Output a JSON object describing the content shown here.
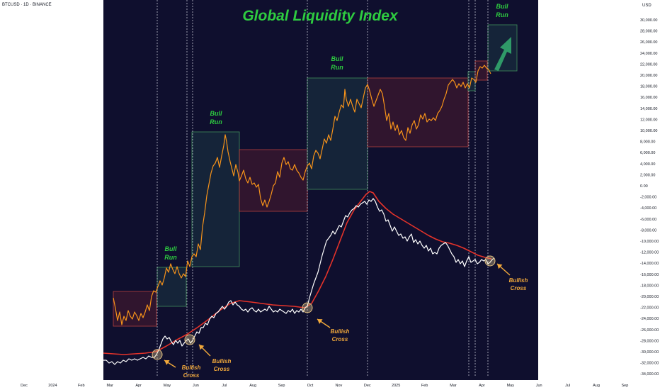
{
  "header": {
    "symbol": "BTCUSD · 1D · BINANCE",
    "currency": "USD"
  },
  "chart_data": {
    "type": "line",
    "title": "Global Liquidity Index",
    "right_axis_ticks": [
      "30,000.00",
      "28,000.00",
      "26,000.00",
      "24,000.00",
      "22,000.00",
      "20,000.00",
      "18,000.00",
      "16,000.00",
      "14,000.00",
      "12,000.00",
      "10,000.00",
      "8,000.00",
      "6,000.00",
      "4,000.00",
      "2,000.00",
      "0.00",
      "-2,000.00",
      "-4,000.00",
      "-6,000.00",
      "-8,000.00",
      "-10,000.00",
      "-12,000.00",
      "-14,000.00",
      "-16,000.00",
      "-18,000.00",
      "-20,000.00",
      "-22,000.00",
      "-24,000.00",
      "-26,000.00",
      "-28,000.00",
      "-30,000.00",
      "-32,000.00",
      "-34,000.00"
    ],
    "x_ticks": [
      "Dec",
      "2024",
      "Feb",
      "Mar",
      "Apr",
      "May",
      "Jun",
      "Jul",
      "Aug",
      "Sep",
      "Oct",
      "Nov",
      "Dec",
      "2025",
      "Feb",
      "Mar",
      "Apr",
      "May",
      "Jun",
      "Jul",
      "Aug",
      "Sep"
    ],
    "annotations": {
      "bull_run_1": [
        "Bull",
        "Run"
      ],
      "bull_run_2": [
        "Bull",
        "Run"
      ],
      "bull_run_3": [
        "Bull",
        "Run"
      ],
      "bull_run_4": [
        "Bull",
        "Run"
      ],
      "bullish_cross_1": [
        "Bullish",
        "Cross"
      ],
      "bullish_cross_2": [
        "Bullish",
        "Cross"
      ],
      "bullish_cross_3": [
        "Bullish",
        "Cross"
      ],
      "bullish_cross_4": [
        "Bullish",
        "Cross"
      ]
    },
    "series": [
      {
        "name": "BTC",
        "color": "#f7931a"
      },
      {
        "name": "",
        "color": "#ffffff"
      },
      {
        "name": "",
        "color": "#e5332a"
      }
    ],
    "colors": {
      "bull_text": "#2ecc40",
      "cross_text": "#f2a93b",
      "title": "#2ecc40"
    }
  }
}
